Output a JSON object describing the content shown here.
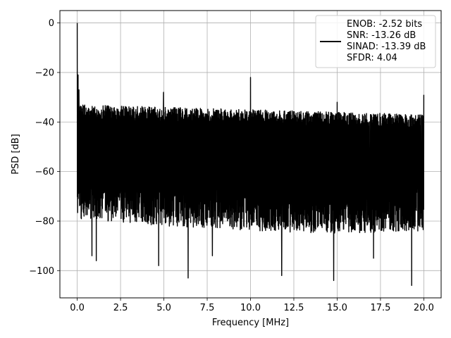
{
  "chart_data": {
    "type": "line",
    "title": "",
    "xlabel": "Frequency [MHz]",
    "ylabel": "PSD [dB]",
    "xlim": [
      -1.0,
      21.0
    ],
    "ylim": [
      -111,
      5
    ],
    "xticks": [
      0.0,
      2.5,
      5.0,
      7.5,
      10.0,
      12.5,
      15.0,
      17.5,
      20.0
    ],
    "xtick_labels": [
      "0.0",
      "2.5",
      "5.0",
      "7.5",
      "10.0",
      "12.5",
      "15.0",
      "17.5",
      "20.0"
    ],
    "yticks": [
      0,
      -20,
      -40,
      -60,
      -80,
      -100
    ],
    "ytick_labels": [
      "0",
      "−20",
      "−40",
      "−60",
      "−80",
      "−100"
    ],
    "grid": true,
    "legend_position": "top-right",
    "legend_lines": [
      "ENOB: -2.52 bits",
      "SNR: -13.26 dB",
      "SINAD: -13.39 dB",
      "SFDR: 4.04"
    ],
    "series": [
      {
        "color": "#000000",
        "x_range": [
          0.0,
          20.0
        ],
        "noise_floor_upper_envelope": [
          {
            "x": 0.0,
            "y": -33
          },
          {
            "x": 5.0,
            "y": -34
          },
          {
            "x": 10.0,
            "y": -35
          },
          {
            "x": 15.0,
            "y": -36
          },
          {
            "x": 20.0,
            "y": -37
          }
        ],
        "noise_floor_lower_envelope": [
          {
            "x": 0.0,
            "y": -75
          },
          {
            "x": 5.0,
            "y": -78
          },
          {
            "x": 10.0,
            "y": -80
          },
          {
            "x": 15.0,
            "y": -81
          },
          {
            "x": 20.0,
            "y": -80
          }
        ],
        "spikes": [
          {
            "x": 0.0,
            "y": 0
          },
          {
            "x": 0.05,
            "y": -21
          },
          {
            "x": 0.1,
            "y": -27
          },
          {
            "x": 4.98,
            "y": -28
          },
          {
            "x": 10.0,
            "y": -22
          },
          {
            "x": 15.0,
            "y": -32
          },
          {
            "x": 20.0,
            "y": -29
          }
        ],
        "dips": [
          {
            "x": 0.85,
            "y": -94
          },
          {
            "x": 1.1,
            "y": -96
          },
          {
            "x": 4.7,
            "y": -98
          },
          {
            "x": 6.4,
            "y": -103
          },
          {
            "x": 7.8,
            "y": -94
          },
          {
            "x": 11.8,
            "y": -102
          },
          {
            "x": 14.8,
            "y": -104
          },
          {
            "x": 17.1,
            "y": -95
          },
          {
            "x": 19.3,
            "y": -106
          }
        ]
      }
    ]
  }
}
